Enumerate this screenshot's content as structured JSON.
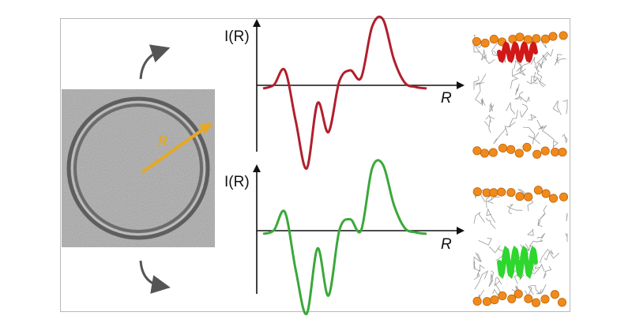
{
  "vesicle": {
    "radius_label": "R",
    "arrow_color": "#e6a825"
  },
  "top_panel": {
    "ylabel": "I(R)",
    "xlabel": "R",
    "curve_color": "#b0202c",
    "protein_color": "#d01818",
    "lipid_head_color": "#f08a1a",
    "protein_position": "surface"
  },
  "bottom_panel": {
    "ylabel": "I(R)",
    "xlabel": "R",
    "curve_color": "#3aa83a",
    "protein_color": "#2ed62e",
    "lipid_head_color": "#f08a1a",
    "protein_position": "embedded"
  },
  "chart_data": [
    {
      "type": "line",
      "series": [
        {
          "values": [
            0,
            0.05,
            0.25,
            -0.45,
            -1.1,
            -0.2,
            -0.6,
            0.1,
            0.25,
            0.15,
            0.85,
            0.95,
            0.4,
            0.08,
            0.02,
            0
          ]
        }
      ],
      "x": [
        0,
        1,
        2,
        3,
        4,
        5,
        6,
        7,
        8,
        9,
        10,
        11,
        12,
        13,
        14,
        15
      ]
    },
    {
      "type": "line",
      "series": [
        {
          "values": [
            0,
            0.05,
            0.3,
            -0.5,
            -1.1,
            -0.2,
            -0.85,
            0.05,
            0.2,
            0.05,
            0.9,
            0.95,
            0.4,
            0.08,
            0.02,
            0
          ]
        }
      ],
      "x": [
        0,
        1,
        2,
        3,
        4,
        5,
        6,
        7,
        8,
        9,
        10,
        11,
        12,
        13,
        14,
        15
      ]
    }
  ]
}
